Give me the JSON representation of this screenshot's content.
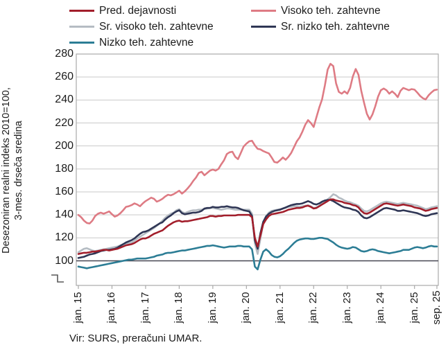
{
  "legend": {
    "items": [
      {
        "label": "Pred. dejavnosti",
        "color": "#A21E2B"
      },
      {
        "label": "Visoko teh. zahtevne",
        "color": "#DE7B84"
      },
      {
        "label": "Sr. visoko teh. zahtevne",
        "color": "#B5BCC3"
      },
      {
        "label": "Sr. nizko teh. zahtevne",
        "color": "#2F3655"
      },
      {
        "label": "Nizko teh. zahtevne",
        "color": "#2C7D95"
      }
    ]
  },
  "y_axis_title_line1": "Desezoniran realni indeks 2010=100,",
  "y_axis_title_line2": "3-mes. drseča sredina",
  "source": "Vir: SURS, preračuni UMAR.",
  "chart_data": {
    "type": "line",
    "title": "",
    "ylabel": "Desezoniran realni indeks 2010=100, 3-mes. drseča sredina",
    "xlabel": "",
    "x_unit": "months, jan 2015 – sep 2025",
    "grid": true,
    "legend_position": "top",
    "ylim": [
      80,
      280
    ],
    "y_tick_step": 20,
    "reference_line": 100,
    "axis_break_below": true,
    "y_ticks": [
      280,
      260,
      240,
      220,
      200,
      180,
      160,
      140,
      120,
      100
    ],
    "x_ticks": [
      "jan. 15",
      "jan. 16",
      "jan. 17",
      "jan. 18",
      "jan. 19",
      "jan. 20",
      "jan. 21",
      "jan. 22",
      "jan. 23",
      "jan. 24",
      "jan. 25",
      "sep. 25"
    ],
    "x_tick_months": [
      0,
      12,
      24,
      36,
      48,
      60,
      72,
      84,
      96,
      108,
      120,
      128
    ],
    "series": [
      {
        "name": "Nizko teh. zahtevne",
        "color": "#2C7D95",
        "values": [
          95,
          94.5,
          94,
          93.5,
          94,
          94.5,
          95,
          95.5,
          96,
          96.5,
          97,
          97.5,
          98,
          98.5,
          99,
          99.5,
          100,
          100.5,
          101,
          101,
          101.5,
          102,
          102,
          102,
          102,
          102.5,
          103,
          103.5,
          104.5,
          105,
          105.5,
          106.5,
          107,
          107,
          107.5,
          108,
          108.5,
          109,
          109,
          109.5,
          110,
          110.5,
          111,
          111.5,
          112,
          112.5,
          113,
          113,
          113.5,
          113,
          112.5,
          112,
          111.5,
          112,
          112.5,
          112.5,
          112.5,
          113,
          113,
          112.5,
          112.5,
          112.5,
          110,
          95,
          92.5,
          101,
          108,
          110,
          108,
          105,
          103.5,
          103,
          104,
          106,
          108.5,
          110.5,
          113,
          115.5,
          117.5,
          118.5,
          119,
          119.5,
          119.5,
          119,
          119,
          119.5,
          120,
          120,
          119.5,
          119,
          117.5,
          116,
          114,
          112.5,
          111.5,
          111,
          110.5,
          111,
          112,
          111.5,
          110,
          108.5,
          108,
          108.5,
          109.5,
          110,
          109.5,
          108.5,
          108,
          107.5,
          107,
          106.5,
          107,
          107.5,
          108,
          108.5,
          109.5,
          109.5,
          109.5,
          110.5,
          111.5,
          112,
          111.5,
          111,
          111.5,
          112.5,
          113,
          112.5,
          112.5
        ]
      },
      {
        "name": "Sr. visoko teh. zahtevne",
        "color": "#B5BCC3",
        "values": [
          107.5,
          109,
          110.5,
          111,
          110,
          109,
          108.5,
          109,
          109.5,
          110,
          110.5,
          111,
          111.5,
          112,
          112.5,
          113.5,
          114.5,
          115,
          115.5,
          116,
          117.5,
          119.5,
          121,
          122.5,
          124,
          125.5,
          127,
          128.5,
          130.5,
          132.5,
          135,
          137.5,
          139.5,
          141,
          142,
          144,
          145,
          142.5,
          141.5,
          142.5,
          143.5,
          144,
          144,
          144.5,
          144.5,
          145,
          145.5,
          146,
          146,
          145.5,
          145,
          144.5,
          145,
          145.5,
          145.5,
          145,
          144.5,
          144.5,
          144.5,
          144.5,
          144.5,
          144.5,
          141,
          115,
          106,
          119,
          133,
          139,
          142,
          143.5,
          144,
          144.5,
          145,
          145.5,
          146,
          147,
          147,
          147.5,
          147.5,
          147,
          147.5,
          148,
          148.5,
          147.5,
          146,
          146.5,
          148,
          150,
          151.5,
          153.5,
          155.5,
          158,
          157,
          155,
          154,
          152.5,
          151.5,
          151,
          150,
          149,
          148,
          145.5,
          143.5,
          143,
          144,
          145.5,
          147,
          148.5,
          150,
          151,
          151.5,
          151,
          150.5,
          150,
          149.5,
          150,
          150.5,
          150,
          149.5,
          149,
          148.5,
          148,
          147,
          146,
          145,
          145.5,
          146.5,
          147,
          147.5
        ]
      },
      {
        "name": "Sr. nizko teh. zahtevne",
        "color": "#2F3655",
        "values": [
          102.5,
          103,
          103.5,
          104.5,
          105.5,
          106,
          106.5,
          107.5,
          108.5,
          109,
          109.5,
          109.5,
          110,
          110.5,
          111.5,
          113,
          114.5,
          116,
          117,
          118,
          119.5,
          121.5,
          123.5,
          125,
          125.5,
          126.5,
          128,
          129.5,
          131,
          132.5,
          133.5,
          136,
          138,
          139.5,
          141.5,
          143,
          144,
          141.5,
          140.5,
          141,
          141.5,
          142,
          142,
          142.5,
          143.5,
          145.5,
          146,
          146,
          147,
          146.5,
          146.5,
          147,
          147,
          147.5,
          147,
          146.5,
          146.5,
          146,
          145,
          144,
          143.5,
          143,
          139,
          118,
          110.5,
          124,
          134,
          138.5,
          141,
          142.5,
          143.5,
          144,
          144.5,
          145.5,
          146.5,
          147.5,
          148.5,
          149,
          149.5,
          149.5,
          150,
          151,
          152,
          151,
          149.5,
          149,
          150,
          151.5,
          152.5,
          153,
          153,
          152,
          150.5,
          149,
          147.5,
          146.5,
          146,
          145.5,
          144.5,
          144,
          142.5,
          139.5,
          137.5,
          137,
          138,
          139.5,
          141,
          142.5,
          144,
          145.5,
          146,
          145.5,
          145,
          144.5,
          143.5,
          143.5,
          144,
          143.5,
          143,
          142.5,
          142,
          141.5,
          140.5,
          139.5,
          139,
          139.5,
          140.5,
          141,
          141.5
        ]
      },
      {
        "name": "Pred. dejavnosti",
        "color": "#A21E2B",
        "values": [
          106,
          106.5,
          107,
          107,
          107.5,
          108,
          108,
          108.5,
          109,
          109.5,
          109.5,
          109,
          109.5,
          110,
          110.5,
          111.5,
          112.5,
          113.5,
          114,
          114.5,
          115.5,
          117,
          118.5,
          119.5,
          119.5,
          120.5,
          122,
          123.5,
          124.5,
          125.5,
          126.5,
          128.5,
          130.5,
          132,
          133.5,
          134.5,
          135,
          134,
          134.5,
          134.5,
          135,
          135.5,
          136,
          136.5,
          137,
          137.5,
          138,
          139,
          139,
          138.5,
          139,
          139,
          139.5,
          139.5,
          139.5,
          139.5,
          139.5,
          140,
          140,
          140,
          140,
          140,
          138,
          120,
          112.5,
          122,
          132,
          136,
          139,
          140.5,
          141,
          141.5,
          142,
          142.5,
          143.5,
          144.5,
          145,
          145.5,
          146,
          146,
          146.5,
          147.5,
          148,
          147,
          145.5,
          146,
          147.5,
          149,
          150.5,
          152,
          153.5,
          153.5,
          152.5,
          152,
          151.5,
          150.5,
          150,
          149.5,
          148.5,
          148,
          146.5,
          143.5,
          141.5,
          141,
          142,
          143.5,
          145,
          146.5,
          148,
          149.5,
          150,
          149.5,
          149,
          148.5,
          148,
          148.5,
          149,
          148.5,
          148,
          147.5,
          146.5,
          146,
          145.5,
          144.5,
          143.5,
          144,
          145,
          145.5,
          146
        ]
      },
      {
        "name": "Visoko teh. zahtevne",
        "color": "#DE7B84",
        "values": [
          140,
          138,
          135,
          133,
          132.5,
          135,
          139,
          141,
          142,
          141,
          142,
          143,
          140.5,
          138.5,
          139.5,
          141.5,
          144,
          147,
          147.5,
          148.5,
          150,
          149,
          147.5,
          150,
          152,
          153.5,
          155,
          154,
          151.5,
          152.5,
          154,
          156,
          157.5,
          157,
          158,
          159.5,
          161,
          158.5,
          160.5,
          163,
          166,
          169.5,
          172.5,
          176.5,
          177.5,
          174.5,
          176.5,
          178.5,
          179.5,
          178.5,
          180,
          184,
          187.5,
          193,
          194.5,
          195,
          190.5,
          188.5,
          194,
          199.5,
          202,
          204,
          204.5,
          200.5,
          197.5,
          197,
          195.5,
          194.5,
          193.5,
          190,
          186,
          185.5,
          187.5,
          190,
          188,
          190.5,
          194,
          199,
          204,
          207.5,
          212.5,
          218.5,
          222.5,
          220,
          216.5,
          225,
          233.5,
          240.5,
          252.5,
          266.5,
          271.5,
          269.5,
          254.5,
          247,
          245.5,
          247.5,
          245.5,
          250.5,
          260.5,
          267,
          262,
          248,
          237.5,
          228,
          223,
          227.5,
          234.5,
          243,
          248.5,
          250,
          248.5,
          245.5,
          247.5,
          245.5,
          242.5,
          248,
          250.5,
          249.5,
          248.5,
          249.5,
          249,
          246.5,
          243.5,
          241.5,
          240.5,
          244,
          246.5,
          248.5,
          249
        ]
      }
    ],
    "colors": {
      "grid": "#C9C9C9",
      "plot_border": "#A9A9A9",
      "reference_line": "#474752",
      "axis_break": "#595959"
    }
  }
}
